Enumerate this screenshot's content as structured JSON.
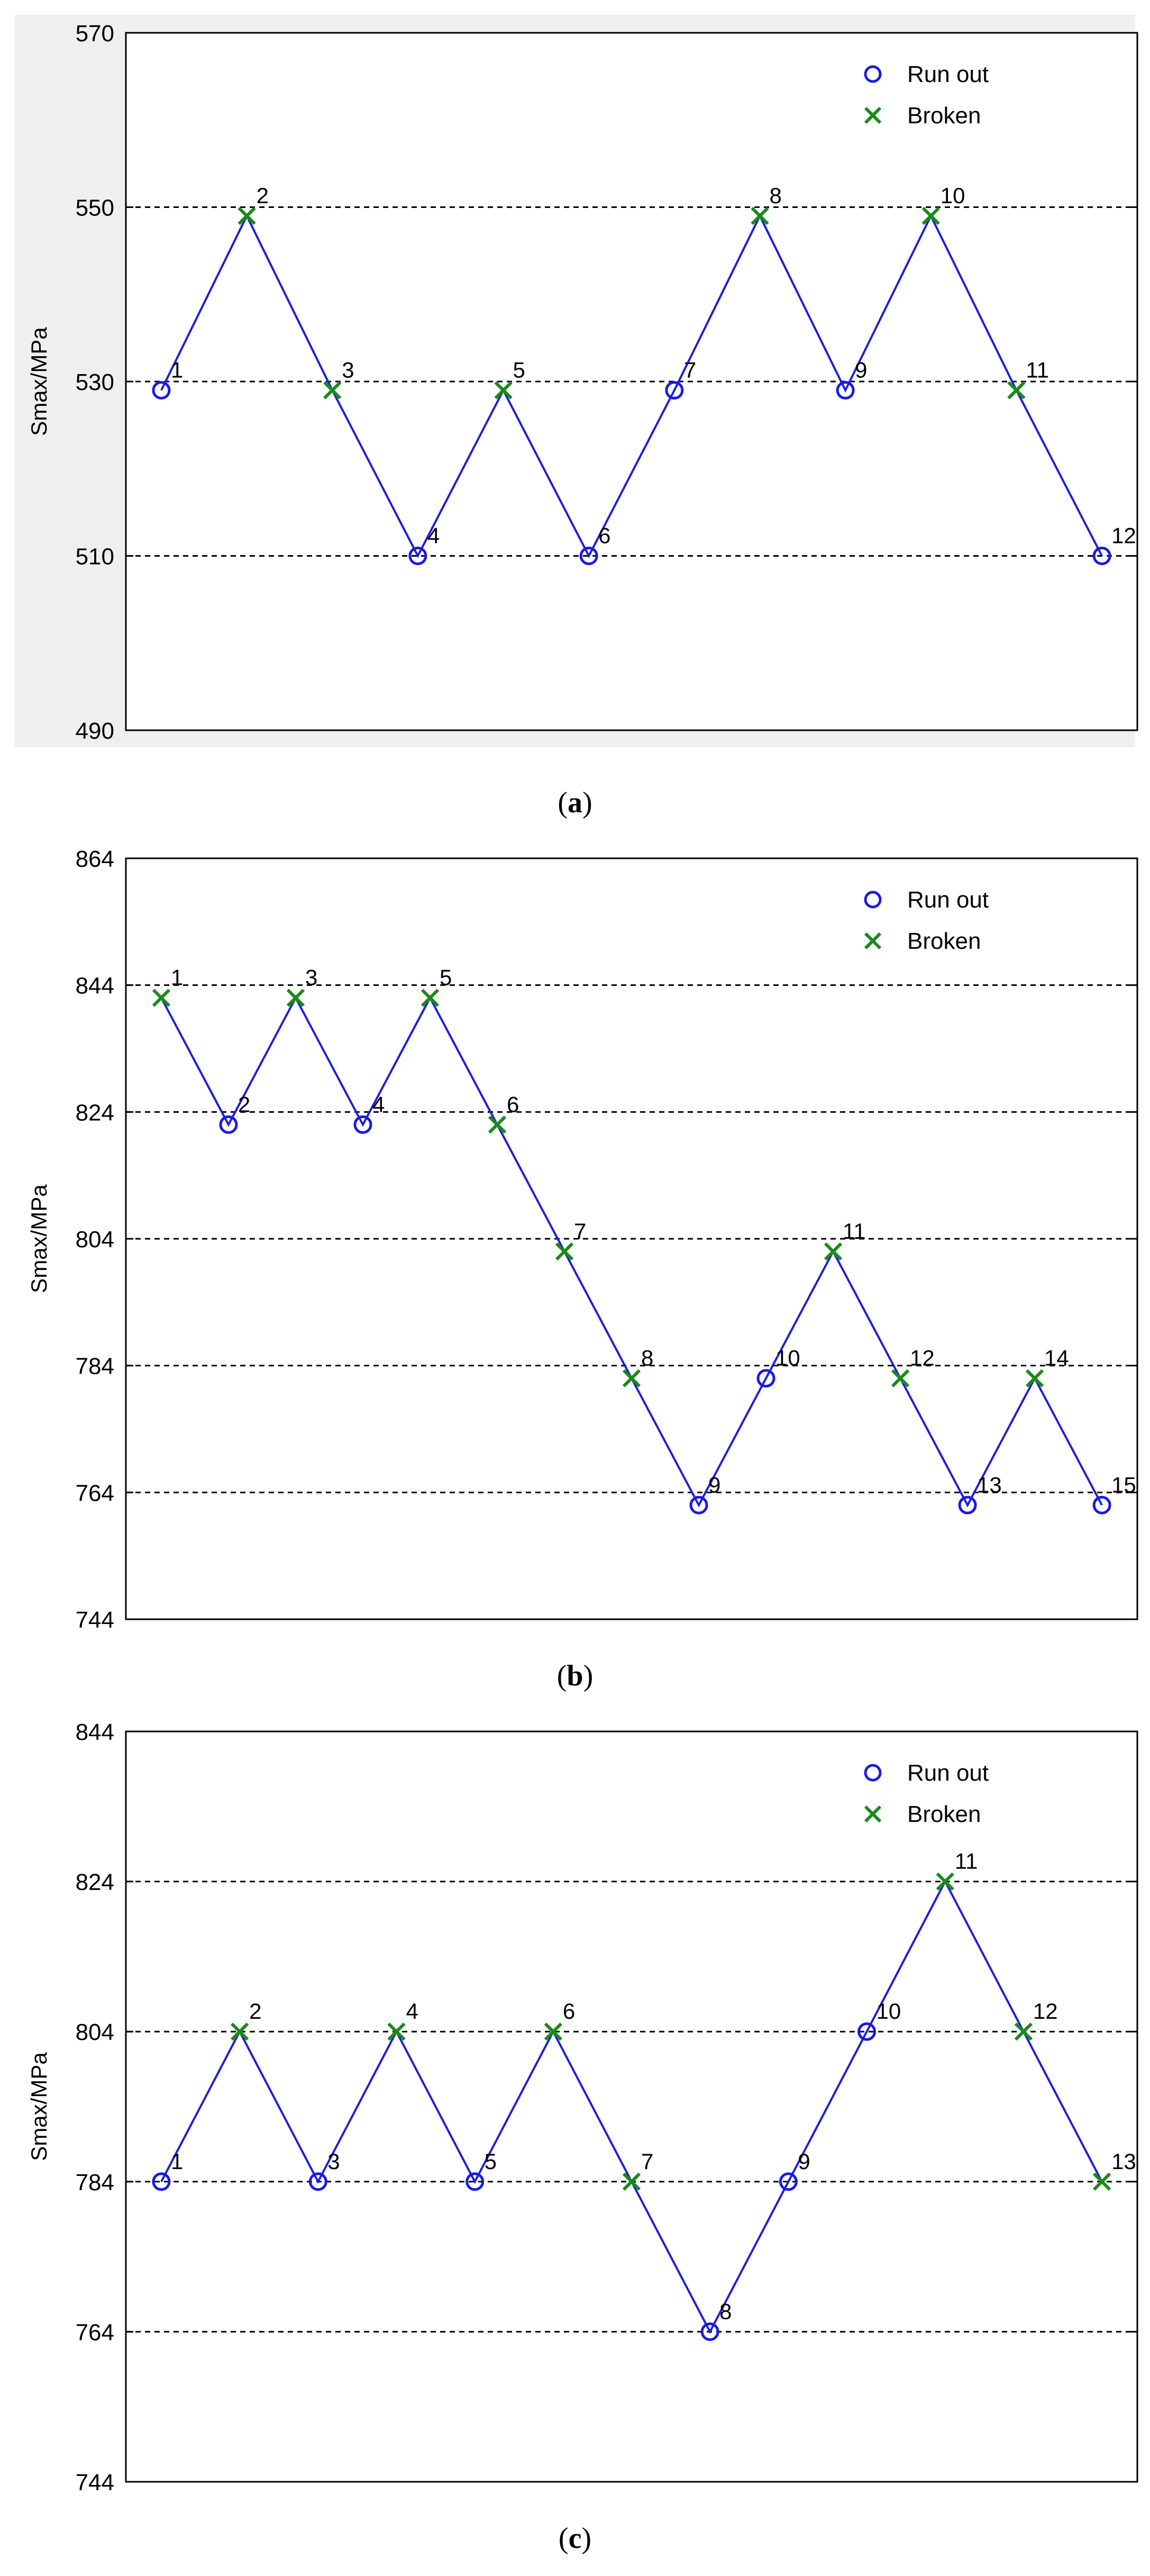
{
  "chart_data": [
    {
      "type": "line",
      "ylabel": "Smax/MPa",
      "ylim": [
        490,
        570
      ],
      "yticks": [
        490,
        510,
        530,
        550,
        570
      ],
      "grid_y": [
        510,
        530,
        550
      ],
      "legend_position": "top-right",
      "legend": [
        "Run out",
        "Broken"
      ],
      "panel_background": "#efefef",
      "caption": "a",
      "x": [
        1,
        2,
        3,
        4,
        5,
        6,
        7,
        8,
        9,
        10,
        11,
        12
      ],
      "y": [
        529,
        549,
        529,
        510,
        529,
        510,
        529,
        549,
        529,
        549,
        529,
        510
      ],
      "status": [
        "run_out",
        "broken",
        "broken",
        "run_out",
        "broken",
        "run_out",
        "run_out",
        "broken",
        "run_out",
        "broken",
        "broken",
        "run_out"
      ],
      "labels": [
        "1",
        "2",
        "3",
        "4",
        "5",
        "6",
        "7",
        "8",
        "9",
        "10",
        "11",
        "12"
      ]
    },
    {
      "type": "line",
      "ylabel": "Smax/MPa",
      "ylim": [
        744,
        864
      ],
      "yticks": [
        744,
        764,
        784,
        804,
        824,
        844,
        864
      ],
      "grid_y": [
        764,
        784,
        804,
        824,
        844
      ],
      "legend_position": "top-right",
      "legend": [
        "Run out",
        "Broken"
      ],
      "panel_background": "#ffffff",
      "caption": "b",
      "x": [
        1,
        2,
        3,
        4,
        5,
        6,
        7,
        8,
        9,
        10,
        11,
        12,
        13,
        14,
        15
      ],
      "y": [
        842,
        822,
        842,
        822,
        842,
        822,
        802,
        782,
        762,
        782,
        802,
        782,
        762,
        782,
        762
      ],
      "status": [
        "broken",
        "run_out",
        "broken",
        "run_out",
        "broken",
        "broken",
        "broken",
        "broken",
        "run_out",
        "run_out",
        "broken",
        "broken",
        "run_out",
        "broken",
        "run_out"
      ],
      "labels": [
        "1",
        "2",
        "3",
        "4",
        "5",
        "6",
        "7",
        "8",
        "9",
        "10",
        "11",
        "12",
        "13",
        "14",
        "15"
      ]
    },
    {
      "type": "line",
      "ylabel": "Smax/MPa",
      "ylim": [
        744,
        844
      ],
      "yticks": [
        744,
        764,
        784,
        804,
        824,
        844
      ],
      "grid_y": [
        764,
        784,
        804,
        824
      ],
      "legend_position": "top-right",
      "legend": [
        "Run out",
        "Broken"
      ],
      "panel_background": "#ffffff",
      "caption": "c",
      "x": [
        1,
        2,
        3,
        4,
        5,
        6,
        7,
        8,
        9,
        10,
        11,
        12,
        13
      ],
      "y": [
        784,
        804,
        784,
        804,
        784,
        804,
        784,
        764,
        784,
        804,
        824,
        804,
        784
      ],
      "status": [
        "run_out",
        "broken",
        "run_out",
        "broken",
        "run_out",
        "broken",
        "broken",
        "run_out",
        "run_out",
        "run_out",
        "broken",
        "broken",
        "broken"
      ],
      "labels": [
        "1",
        "2",
        "3",
        "4",
        "5",
        "6",
        "7",
        "8",
        "9",
        "10",
        "11",
        "12",
        "13"
      ]
    }
  ],
  "colors": {
    "line": "#1f1fd6",
    "run_out": "#1a1ae6",
    "broken": "#1a8a1a",
    "grid": "#000000"
  }
}
